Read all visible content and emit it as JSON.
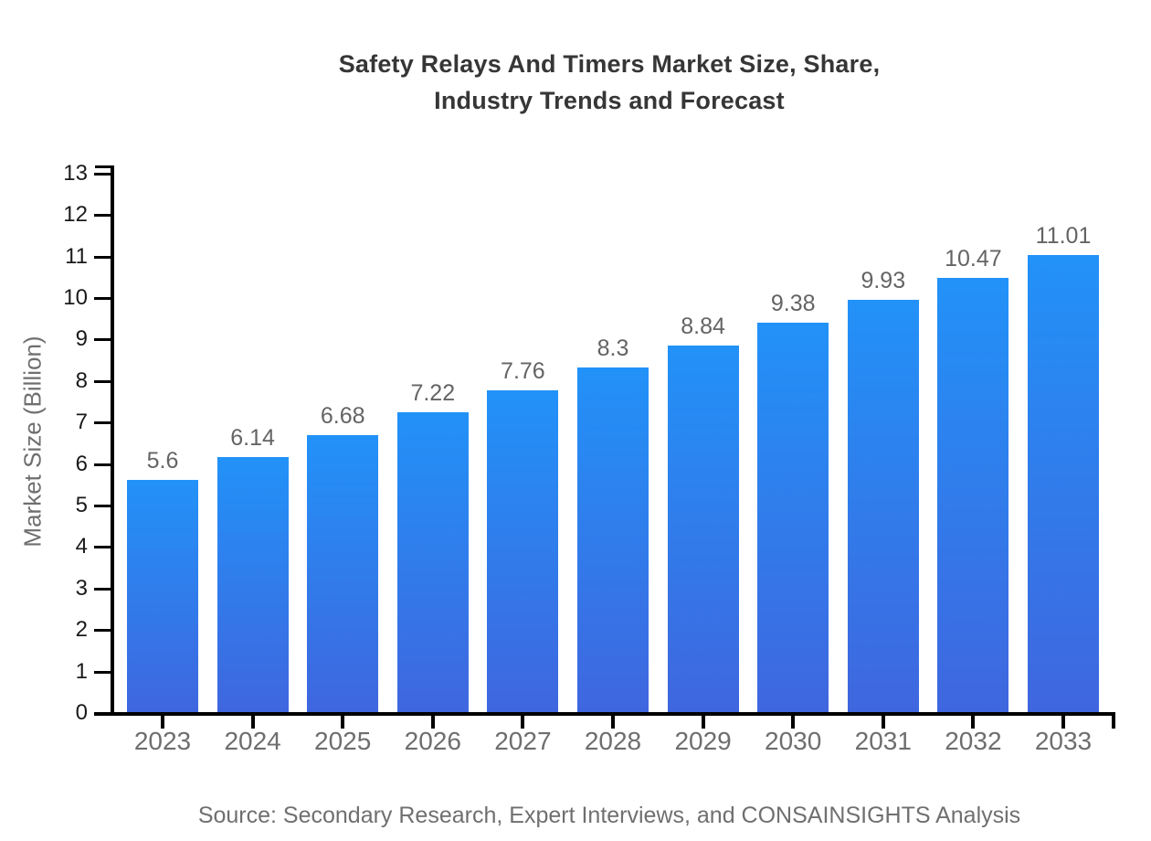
{
  "chart_data": {
    "type": "bar",
    "title": "Safety Relays And Timers Market Size, Share,\nIndustry Trends and Forecast",
    "categories": [
      "2023",
      "2024",
      "2025",
      "2026",
      "2027",
      "2028",
      "2029",
      "2030",
      "2031",
      "2032",
      "2033"
    ],
    "values": [
      5.6,
      6.14,
      6.68,
      7.22,
      7.76,
      8.3,
      8.84,
      9.38,
      9.93,
      10.47,
      11.01
    ],
    "value_labels": [
      "5.6",
      "6.14",
      "6.68",
      "7.22",
      "7.76",
      "8.3",
      "8.84",
      "9.38",
      "9.93",
      "10.47",
      "11.01"
    ],
    "xlabel": "",
    "ylabel": "Market Size (Billion)",
    "ylim": [
      0,
      13
    ],
    "ytick_step": 1,
    "ytick_labels": [
      "0",
      "1",
      "2",
      "3",
      "4",
      "5",
      "6",
      "7",
      "8",
      "9",
      "10",
      "11",
      "12",
      "13"
    ],
    "grid": false,
    "legend_position": "none",
    "source_note": "Source: Secondary Research, Expert Interviews, and CONSAINSIGHTS Analysis",
    "colors": {
      "bar_gradient_top": "#2292F8",
      "bar_gradient_bottom": "#3F66DF",
      "axis": "#000000",
      "title_text": "#363636",
      "ytick_text": "#1a1a1a",
      "xtick_text": "#6e6e6e",
      "value_label_text": "#646464",
      "muted_text": "#6f6f6f",
      "background": "#ffffff"
    }
  }
}
